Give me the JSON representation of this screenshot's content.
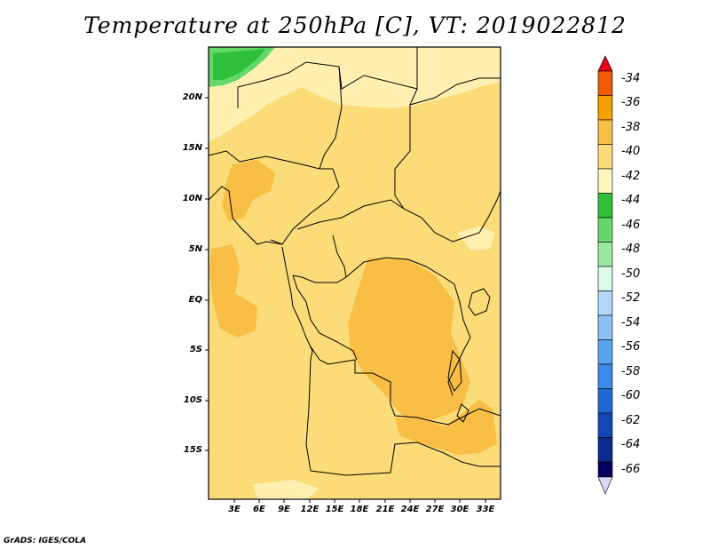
{
  "title": "Temperature at 250hPa [C], VT: 2019022812",
  "credit": "GrADS: IGES/COLA",
  "lat_labels": [
    "20N",
    "15N",
    "10N",
    "5N",
    "EQ",
    "5S",
    "10S",
    "15S"
  ],
  "lon_labels": [
    "3E",
    "6E",
    "9E",
    "12E",
    "15E",
    "18E",
    "21E",
    "24E",
    "27E",
    "30E",
    "33E"
  ],
  "colorbar": {
    "levels": [
      "-34",
      "-36",
      "-38",
      "-40",
      "-42",
      "-44",
      "-46",
      "-48",
      "-50",
      "-52",
      "-54",
      "-56",
      "-58",
      "-60",
      "-62",
      "-64",
      "-66"
    ],
    "colors": [
      "#e8001a",
      "#f25a00",
      "#f5a000",
      "#f8be46",
      "#fbdc78",
      "#fff5be",
      "#2fbf3a",
      "#64d96a",
      "#9ae8a0",
      "#ddfbe9",
      "#b4d6f8",
      "#8cc0f4",
      "#5aa2ee",
      "#3c8ae6",
      "#2266d6",
      "#1247b4",
      "#0a2a8e",
      "#08005e",
      "#d8d8f4"
    ]
  }
}
